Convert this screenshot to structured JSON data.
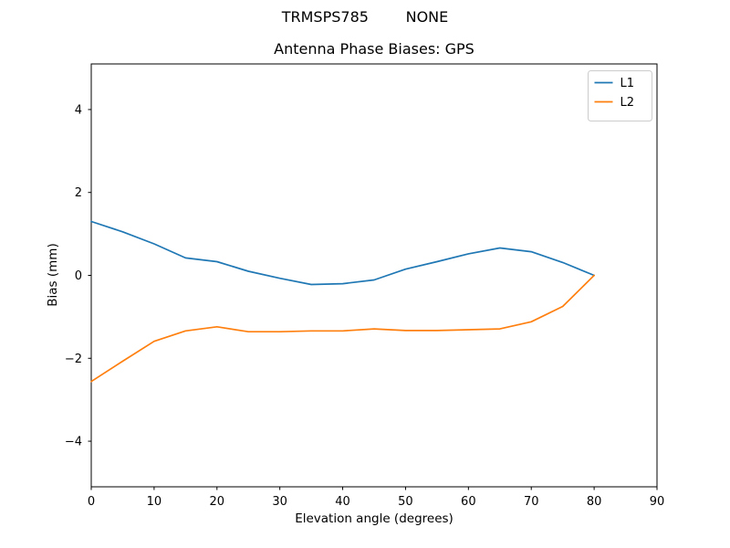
{
  "suptitle": "TRMSPS785        NONE",
  "chart_data": {
    "type": "line",
    "title": "Antenna Phase Biases: GPS",
    "xlabel": "Elevation angle (degrees)",
    "ylabel": "Bias (mm)",
    "xlim": [
      0,
      90
    ],
    "ylim": [
      -5.1,
      5.1
    ],
    "xticks": [
      0,
      10,
      20,
      30,
      40,
      50,
      60,
      70,
      80,
      90
    ],
    "yticks": [
      -4,
      -2,
      0,
      2,
      4
    ],
    "grid": false,
    "legend_position": "upper right",
    "x": [
      0,
      5,
      10,
      15,
      20,
      25,
      30,
      35,
      40,
      45,
      50,
      55,
      60,
      65,
      70,
      75,
      80
    ],
    "series": [
      {
        "name": "L1",
        "color": "#1f77b4",
        "values": [
          1.3,
          1.05,
          0.76,
          0.42,
          0.33,
          0.1,
          -0.07,
          -0.22,
          -0.2,
          -0.11,
          0.15,
          0.33,
          0.52,
          0.66,
          0.57,
          0.31,
          0.0
        ]
      },
      {
        "name": "L2",
        "color": "#ff7f0e",
        "values": [
          -2.56,
          -2.07,
          -1.59,
          -1.34,
          -1.24,
          -1.36,
          -1.36,
          -1.34,
          -1.34,
          -1.29,
          -1.33,
          -1.33,
          -1.31,
          -1.29,
          -1.12,
          -0.75,
          0.0
        ]
      }
    ]
  },
  "colors": {
    "background": "#ffffff",
    "spine": "#000000",
    "legend_border": "#cccccc",
    "series_l1": "#1f77b4",
    "series_l2": "#ff7f0e"
  }
}
